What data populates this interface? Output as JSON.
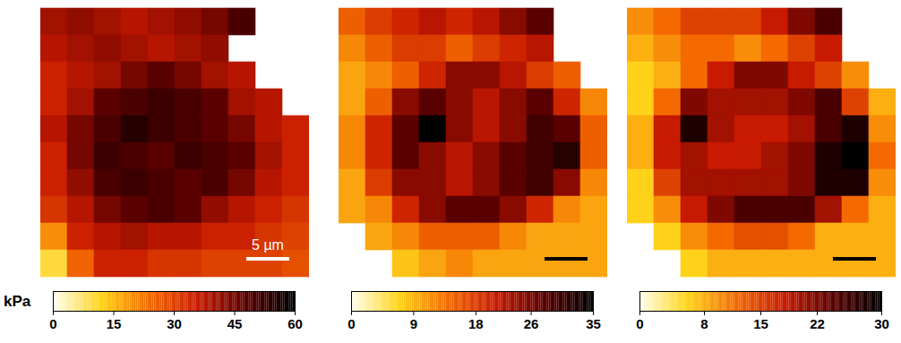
{
  "chart_data": [
    {
      "type": "heatmap",
      "tick_labels": false,
      "annotations": [
        "5 µm"
      ],
      "cells": [
        [
          40,
          42,
          40,
          38,
          40,
          42,
          45,
          50,
          null,
          null
        ],
        [
          38,
          40,
          42,
          40,
          38,
          40,
          42,
          null,
          null,
          null
        ],
        [
          35,
          38,
          40,
          45,
          48,
          45,
          40,
          38,
          null,
          null
        ],
        [
          35,
          40,
          48,
          50,
          52,
          50,
          48,
          40,
          38,
          null
        ],
        [
          38,
          45,
          50,
          55,
          52,
          50,
          48,
          45,
          38,
          35
        ],
        [
          35,
          45,
          52,
          50,
          48,
          52,
          50,
          48,
          40,
          35
        ],
        [
          35,
          42,
          50,
          52,
          50,
          48,
          50,
          45,
          38,
          35
        ],
        [
          32,
          38,
          45,
          48,
          50,
          48,
          42,
          38,
          35,
          32
        ],
        [
          20,
          35,
          38,
          40,
          38,
          38,
          35,
          35,
          32,
          30
        ],
        [
          10,
          25,
          35,
          35,
          32,
          32,
          30,
          30,
          30,
          28
        ]
      ],
      "colorbar": {
        "label": "kPa",
        "range": [
          0,
          60
        ],
        "ticks": [
          0,
          15,
          30,
          45,
          60
        ]
      }
    },
    {
      "type": "heatmap",
      "tick_labels": false,
      "cells": [
        [
          15,
          18,
          20,
          22,
          20,
          22,
          25,
          28,
          null,
          null
        ],
        [
          12,
          15,
          18,
          18,
          15,
          18,
          20,
          22,
          null,
          null
        ],
        [
          10,
          12,
          15,
          20,
          25,
          25,
          22,
          18,
          15,
          null
        ],
        [
          10,
          15,
          25,
          28,
          25,
          22,
          25,
          28,
          20,
          12
        ],
        [
          12,
          20,
          28,
          35,
          25,
          22,
          25,
          30,
          28,
          15
        ],
        [
          12,
          20,
          28,
          25,
          22,
          25,
          28,
          30,
          32,
          15
        ],
        [
          10,
          18,
          25,
          25,
          22,
          25,
          28,
          30,
          25,
          12
        ],
        [
          10,
          12,
          20,
          25,
          28,
          28,
          25,
          20,
          12,
          10
        ],
        [
          null,
          10,
          12,
          15,
          15,
          15,
          12,
          10,
          10,
          10
        ],
        [
          null,
          null,
          8,
          10,
          12,
          10,
          10,
          10,
          10,
          10
        ]
      ],
      "colorbar": {
        "range": [
          0,
          35
        ],
        "ticks": [
          0,
          9,
          18,
          26,
          35
        ]
      }
    },
    {
      "type": "heatmap",
      "tick_labels": false,
      "cells": [
        [
          10,
          12,
          15,
          15,
          15,
          18,
          22,
          25,
          null,
          null
        ],
        [
          8,
          10,
          12,
          12,
          10,
          12,
          15,
          18,
          null,
          null
        ],
        [
          6,
          8,
          12,
          18,
          22,
          22,
          18,
          15,
          10,
          null
        ],
        [
          6,
          12,
          22,
          20,
          20,
          20,
          22,
          25,
          15,
          8
        ],
        [
          8,
          18,
          28,
          20,
          18,
          18,
          20,
          25,
          28,
          10
        ],
        [
          8,
          18,
          20,
          18,
          18,
          20,
          22,
          28,
          30,
          12
        ],
        [
          6,
          15,
          20,
          20,
          20,
          20,
          22,
          28,
          28,
          10
        ],
        [
          6,
          10,
          18,
          22,
          25,
          25,
          25,
          20,
          12,
          8
        ],
        [
          null,
          6,
          10,
          12,
          14,
          14,
          12,
          8,
          8,
          8
        ],
        [
          null,
          null,
          6,
          8,
          8,
          8,
          8,
          8,
          8,
          8
        ]
      ],
      "colorbar": {
        "range": [
          0,
          30
        ],
        "ticks": [
          0,
          8,
          15,
          22,
          30
        ]
      }
    }
  ]
}
